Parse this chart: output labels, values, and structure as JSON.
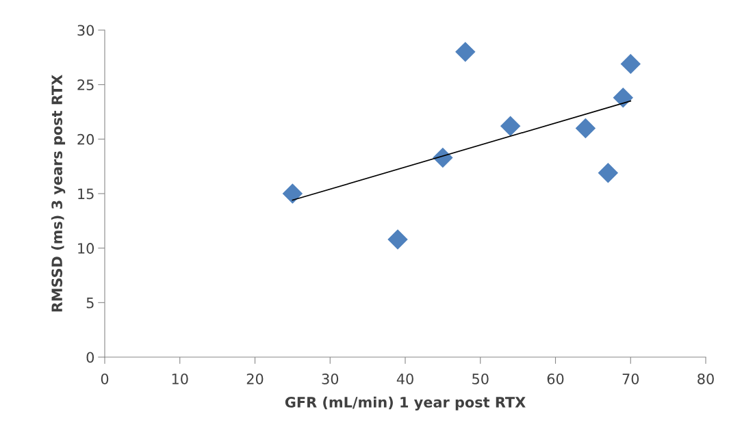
{
  "chart_data": {
    "type": "scatter",
    "xlabel": "GFR (mL/min) 1 year post RTX",
    "ylabel": "RMSSD (ms) 3 years post RTX",
    "series": [
      {
        "color": "#4f81bd",
        "marker": "diamond",
        "x": [
          25,
          39,
          45,
          48,
          54,
          64,
          67,
          69,
          70
        ],
        "values": [
          15.0,
          10.8,
          18.3,
          28.0,
          21.2,
          21.0,
          16.9,
          23.8,
          26.9
        ]
      },
      {
        "type": "line",
        "color": "#000000",
        "marker": "none",
        "line_style": "solid",
        "x": [
          25,
          70
        ],
        "values": [
          14.4,
          23.5
        ]
      }
    ],
    "xlim": [
      0,
      80
    ],
    "xticks": [
      0,
      10,
      20,
      30,
      40,
      50,
      60,
      70,
      80
    ],
    "ylim": [
      0,
      30
    ],
    "yticks": [
      0,
      5,
      10,
      15,
      20,
      25,
      30
    ],
    "grid": false,
    "legend": false
  }
}
